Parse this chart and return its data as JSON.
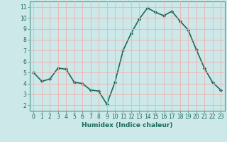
{
  "x": [
    0,
    1,
    2,
    3,
    4,
    5,
    6,
    7,
    8,
    9,
    10,
    11,
    12,
    13,
    14,
    15,
    16,
    17,
    18,
    19,
    20,
    21,
    22,
    23
  ],
  "y": [
    5.0,
    4.2,
    4.4,
    5.4,
    5.3,
    4.1,
    4.0,
    3.4,
    3.3,
    2.1,
    4.1,
    7.0,
    8.6,
    9.9,
    10.9,
    10.5,
    10.2,
    10.6,
    9.7,
    8.9,
    7.1,
    5.4,
    4.1,
    3.4
  ],
  "line_color": "#1a6b5a",
  "marker": "D",
  "marker_size": 2.2,
  "bg_color": "#cce8e8",
  "grid_color": "#f0b0b0",
  "xlabel": "Humidex (Indice chaleur)",
  "xlim": [
    -0.5,
    23.5
  ],
  "ylim": [
    1.5,
    11.5
  ],
  "xticks": [
    0,
    1,
    2,
    3,
    4,
    5,
    6,
    7,
    8,
    9,
    10,
    11,
    12,
    13,
    14,
    15,
    16,
    17,
    18,
    19,
    20,
    21,
    22,
    23
  ],
  "yticks": [
    2,
    3,
    4,
    5,
    6,
    7,
    8,
    9,
    10,
    11
  ],
  "tick_color": "#1a6b5a",
  "axis_color": "#4a9a8a",
  "linewidth": 1.2
}
